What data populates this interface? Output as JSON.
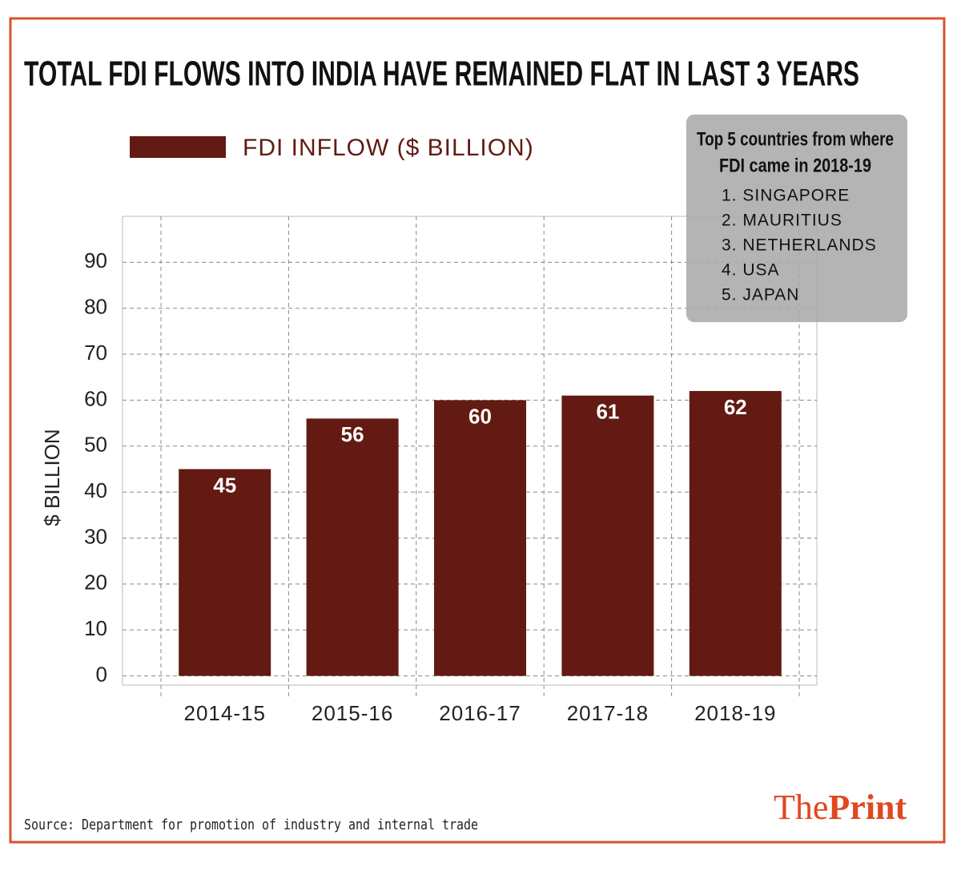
{
  "chart_data": {
    "type": "bar",
    "title": "TOTAL FDI FLOWS INTO INDIA HAVE REMAINED FLAT IN LAST 3 YEARS",
    "y_label": "$ BILLION",
    "categories": [
      "2014-15",
      "2015-16",
      "2016-17",
      "2017-18",
      "2018-19"
    ],
    "series": [
      {
        "name": "FDI INFLOW ($ BILLION)",
        "color": "#621a12",
        "values": [
          45,
          56,
          60,
          61,
          62
        ]
      }
    ],
    "ylim": [
      -2,
      100
    ],
    "yticks": [
      0,
      10,
      20,
      30,
      40,
      50,
      60,
      70,
      80,
      90
    ],
    "grid": true,
    "legend": "top-left",
    "annotation": {
      "title": [
        "Top 5 countries from where",
        "FDI came in 2018-19"
      ],
      "items": [
        "1. SINGAPORE",
        "2. MAURITIUS",
        "3. NETHERLANDS",
        "4. USA",
        "5. JAPAN"
      ]
    }
  },
  "source": "Source: Department for promotion of industry and internal trade",
  "brand": {
    "first": "The",
    "second": "Print"
  }
}
